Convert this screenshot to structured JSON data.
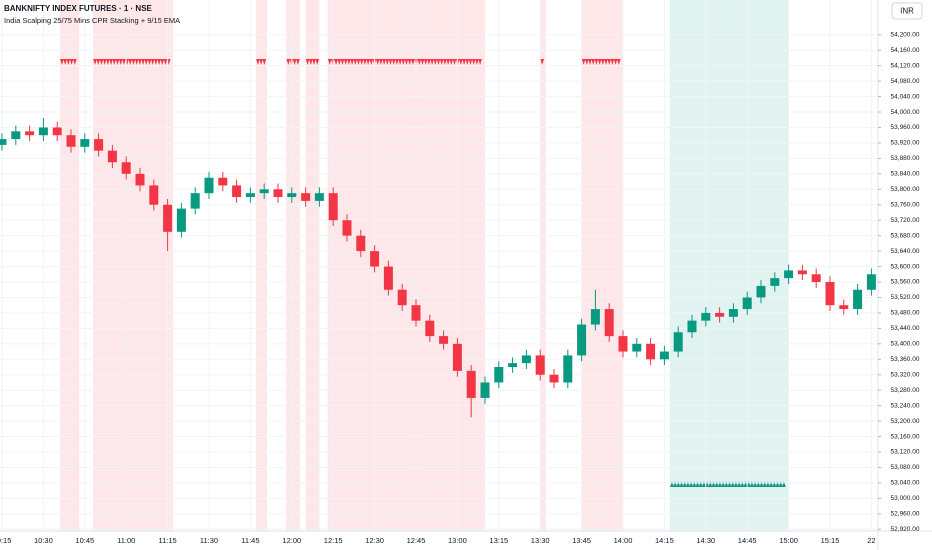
{
  "chart_data": {
    "type": "candlestick",
    "title": "BANKNIFTY INDEX FUTURES · 1 · NSE",
    "subtitle": "India Scalping 25/75 Mins CPR Stacking + 9/15 EMA",
    "currency": "INR",
    "up_color": "#089981",
    "down_color": "#f23645",
    "x": [
      "10:15",
      "10:20",
      "10:25",
      "10:30",
      "10:35",
      "10:40",
      "10:45",
      "10:50",
      "10:55",
      "11:00",
      "11:05",
      "11:10",
      "11:15",
      "11:20",
      "11:25",
      "11:30",
      "11:35",
      "11:40",
      "11:45",
      "11:50",
      "11:55",
      "12:00",
      "12:05",
      "12:10",
      "12:15",
      "12:20",
      "12:25",
      "12:30",
      "12:35",
      "12:40",
      "12:45",
      "12:50",
      "12:55",
      "13:00",
      "13:05",
      "13:10",
      "13:15",
      "13:20",
      "13:25",
      "13:30",
      "13:35",
      "13:40",
      "13:45",
      "13:50",
      "13:55",
      "14:00",
      "14:05",
      "14:10",
      "14:15",
      "14:20",
      "14:25",
      "14:30",
      "14:35",
      "14:40",
      "14:45",
      "14:50",
      "14:55",
      "15:00",
      "15:05",
      "15:10",
      "15:15",
      "15:20",
      "15:25",
      "15:30"
    ],
    "open": [
      53915,
      53930,
      53950,
      53940,
      53960,
      53940,
      53910,
      53930,
      53900,
      53870,
      53840,
      53810,
      53760,
      53690,
      53750,
      53790,
      53830,
      53810,
      53780,
      53790,
      53800,
      53780,
      53790,
      53770,
      53790,
      53720,
      53680,
      53640,
      53600,
      53540,
      53500,
      53460,
      53420,
      53400,
      53330,
      53260,
      53300,
      53340,
      53350,
      53370,
      53320,
      53300,
      53370,
      53450,
      53490,
      53420,
      53380,
      53400,
      53360,
      53380,
      53430,
      53460,
      53480,
      53470,
      53490,
      53520,
      53550,
      53570,
      53590,
      53580,
      53560,
      53500,
      53490,
      53540
    ],
    "high": [
      53945,
      53965,
      53965,
      53985,
      53975,
      53955,
      53945,
      53945,
      53915,
      53885,
      53855,
      53825,
      53775,
      53765,
      53805,
      53845,
      53845,
      53825,
      53805,
      53815,
      53815,
      53805,
      53805,
      53805,
      53805,
      53735,
      53695,
      53655,
      53615,
      53555,
      53515,
      53475,
      53435,
      53415,
      53345,
      53315,
      53355,
      53365,
      53385,
      53385,
      53335,
      53385,
      53465,
      53540,
      53505,
      53435,
      53415,
      53415,
      53395,
      53445,
      53475,
      53495,
      53495,
      53505,
      53535,
      53565,
      53585,
      53605,
      53605,
      53595,
      53575,
      53515,
      53555,
      53595
    ],
    "low": [
      53900,
      53915,
      53925,
      53925,
      53925,
      53895,
      53895,
      53885,
      53855,
      53825,
      53795,
      53745,
      53640,
      53675,
      53735,
      53775,
      53795,
      53765,
      53765,
      53775,
      53765,
      53765,
      53755,
      53755,
      53705,
      53665,
      53625,
      53585,
      53525,
      53485,
      53445,
      53405,
      53385,
      53315,
      53210,
      53245,
      53285,
      53325,
      53335,
      53305,
      53285,
      53285,
      53355,
      53435,
      53405,
      53365,
      53365,
      53345,
      53345,
      53365,
      53415,
      53445,
      53455,
      53455,
      53475,
      53505,
      53535,
      53555,
      53565,
      53545,
      53485,
      53475,
      53475,
      53525
    ],
    "close": [
      53930,
      53950,
      53940,
      53960,
      53940,
      53910,
      53930,
      53900,
      53870,
      53840,
      53810,
      53760,
      53690,
      53750,
      53790,
      53830,
      53810,
      53780,
      53790,
      53800,
      53780,
      53790,
      53770,
      53790,
      53720,
      53680,
      53640,
      53600,
      53540,
      53500,
      53460,
      53420,
      53400,
      53330,
      53260,
      53300,
      53340,
      53350,
      53370,
      53320,
      53300,
      53370,
      53450,
      53490,
      53420,
      53380,
      53400,
      53360,
      53380,
      53430,
      53460,
      53480,
      53470,
      53490,
      53520,
      53550,
      53570,
      53590,
      53580,
      53560,
      53500,
      53490,
      53540,
      53580
    ],
    "bearish_zones": [
      [
        "10:36",
        "10:43"
      ],
      [
        "10:48",
        "11:17"
      ],
      [
        "11:47",
        "11:51"
      ],
      [
        "11:58",
        "12:03"
      ],
      [
        "12:05",
        "12:10"
      ],
      [
        "12:13",
        "13:10"
      ],
      [
        "13:30",
        "13:32"
      ],
      [
        "13:45",
        "14:00"
      ]
    ],
    "bullish_zones": [
      [
        "14:17",
        "15:00"
      ]
    ],
    "ylim": [
      52900,
      54290
    ],
    "yticks": [
      {
        "value": 52920,
        "label": "52,920.00"
      },
      {
        "value": 52960,
        "label": "52,960.00"
      },
      {
        "value": 53000,
        "label": "53,000.00"
      },
      {
        "value": 53040,
        "label": "53,040.00"
      },
      {
        "value": 53080,
        "label": "53,080.00"
      },
      {
        "value": 53120,
        "label": "53,120.00"
      },
      {
        "value": 53160,
        "label": "53,160.00"
      },
      {
        "value": 53200,
        "label": "53,200.00"
      },
      {
        "value": 53240,
        "label": "53,240.00"
      },
      {
        "value": 53280,
        "label": "53,280.00"
      },
      {
        "value": 53320,
        "label": "53,320.00"
      },
      {
        "value": 53360,
        "label": "53,360.00"
      },
      {
        "value": 53400,
        "label": "53,400.00"
      },
      {
        "value": 53440,
        "label": "53,440.00"
      },
      {
        "value": 53480,
        "label": "53,480.00"
      },
      {
        "value": 53520,
        "label": "53,520.00"
      },
      {
        "value": 53560,
        "label": "53,560.00"
      },
      {
        "value": 53600,
        "label": "53,600.00"
      },
      {
        "value": 53640,
        "label": "53,640.00"
      },
      {
        "value": 53680,
        "label": "53,680.00"
      },
      {
        "value": 53720,
        "label": "53,720.00"
      },
      {
        "value": 53760,
        "label": "53,760.00"
      },
      {
        "value": 53800,
        "label": "53,800.00"
      },
      {
        "value": 53840,
        "label": "53,840.00"
      },
      {
        "value": 53880,
        "label": "53,880.00"
      },
      {
        "value": 53920,
        "label": "53,920.00"
      },
      {
        "value": 53960,
        "label": "53,960.00"
      },
      {
        "value": 54000,
        "label": "54,000.00"
      },
      {
        "value": 54040,
        "label": "54,040.00"
      },
      {
        "value": 54080,
        "label": "54,080.00"
      },
      {
        "value": 54120,
        "label": "54,120.00"
      },
      {
        "value": 54160,
        "label": "54,160.00"
      },
      {
        "value": 54200,
        "label": "54,200.00"
      }
    ],
    "xticks": [
      "10:15",
      "10:30",
      "10:45",
      "11:00",
      "11:15",
      "11:30",
      "11:45",
      "12:00",
      "12:15",
      "12:30",
      "12:45",
      "13:00",
      "13:15",
      "13:30",
      "13:45",
      "14:00",
      "14:15",
      "14:30",
      "14:45",
      "15:00",
      "15:15",
      "22"
    ],
    "grid": true
  }
}
